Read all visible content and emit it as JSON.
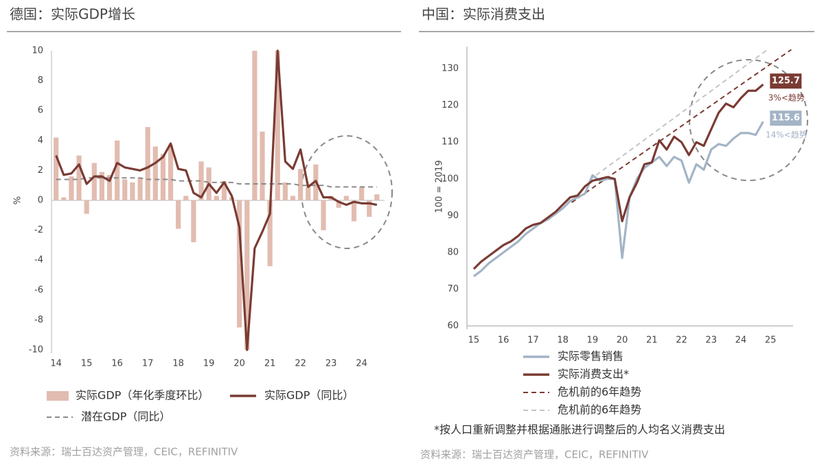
{
  "chart_data": [
    {
      "type": "bar",
      "title": "德国：实际GDP增长",
      "y_label": "%",
      "source": "资料来源：瑞士百达资产管理，CEIC，REFINITIV",
      "x": [
        14,
        14.25,
        14.5,
        14.75,
        15,
        15.25,
        15.5,
        15.75,
        16,
        16.25,
        16.5,
        16.75,
        17,
        17.25,
        17.5,
        17.75,
        18,
        18.25,
        18.5,
        18.75,
        19,
        19.25,
        19.5,
        19.75,
        20,
        20.25,
        20.5,
        20.75,
        21,
        21.25,
        21.5,
        21.75,
        22,
        22.25,
        22.5,
        22.75,
        23,
        23.25,
        23.5,
        23.75,
        24,
        24.25,
        24.5
      ],
      "xlim": [
        13.85,
        24.75
      ],
      "xticks": [
        14,
        15,
        16,
        17,
        18,
        19,
        20,
        21,
        22,
        23,
        24
      ],
      "ylim": [
        -10,
        10
      ],
      "yticks": [
        -10,
        -8,
        -6,
        -4,
        -2,
        0,
        2,
        4,
        6,
        8,
        10
      ],
      "grid": false,
      "series": [
        {
          "name": "实际GDP（年化季度环比）",
          "type": "bar",
          "color": "#e2bcb0",
          "values": [
            4.2,
            0.2,
            1.6,
            3.0,
            -0.9,
            2.5,
            1.9,
            1.7,
            4.0,
            1.4,
            1.2,
            1.5,
            4.9,
            3.6,
            3.1,
            3.7,
            -1.9,
            0.3,
            -2.8,
            2.6,
            2.2,
            0.3,
            1.3,
            0.2,
            -8.5,
            -10,
            10,
            4.6,
            -4.4,
            10,
            1.2,
            0.3,
            2.1,
            0.9,
            2.4,
            -2.0,
            0.3,
            -0.5,
            0.3,
            -1.4,
            0.9,
            -1.1,
            0.4
          ]
        },
        {
          "name": "实际GDP（同比）",
          "type": "line",
          "color": "#7a3b33",
          "style": "solid",
          "values": [
            3.0,
            1.7,
            1.8,
            2.4,
            1.1,
            1.6,
            1.6,
            1.3,
            2.5,
            2.2,
            2.1,
            2.0,
            2.2,
            2.5,
            2.9,
            3.8,
            2.1,
            2.0,
            0.5,
            0.2,
            1.1,
            0.5,
            1.2,
            0.3,
            -1.8,
            -10,
            -3.2,
            -2.1,
            -0.9,
            10,
            2.6,
            2.1,
            3.4,
            0.9,
            1.3,
            0.2,
            0.2,
            -0.1,
            -0.3,
            -0.1,
            -0.2,
            -0.2,
            -0.3
          ]
        },
        {
          "name": "潜在GDP（同比）",
          "type": "line",
          "color": "#8a8a8a",
          "style": "dashed",
          "values": [
            1.4,
            1.4,
            1.4,
            1.4,
            1.5,
            1.5,
            1.5,
            1.5,
            1.5,
            1.5,
            1.5,
            1.5,
            1.4,
            1.4,
            1.4,
            1.4,
            1.3,
            1.3,
            1.3,
            1.3,
            1.2,
            1.2,
            1.2,
            1.2,
            1.1,
            1.1,
            1.1,
            1.1,
            1.1,
            1.1,
            1.1,
            1.1,
            1.0,
            1.0,
            1.0,
            1.0,
            0.9,
            0.9,
            0.9,
            0.9,
            0.9,
            0.9,
            0.9
          ]
        }
      ]
    },
    {
      "type": "line",
      "title": "中国：实际消费支出",
      "y_label": "100 = 2019",
      "note": "*按人口重新调整并根据通胀进行调整后的人均名义消费支出",
      "source": "资料来源：瑞士百达资产管理，CEIC，REFINITIV",
      "x": [
        15,
        15.25,
        15.5,
        15.75,
        16,
        16.25,
        16.5,
        16.75,
        17,
        17.25,
        17.5,
        17.75,
        18,
        18.25,
        18.5,
        18.75,
        19,
        19.25,
        19.5,
        19.75,
        20,
        20.25,
        20.5,
        20.75,
        21,
        21.25,
        21.5,
        21.75,
        22,
        22.25,
        22.5,
        22.75,
        23,
        23.25,
        23.5,
        23.75,
        24,
        24.25,
        24.5,
        24.75
      ],
      "xlim": [
        14.77,
        25.76
      ],
      "xticks": [
        15,
        16,
        17,
        18,
        19,
        20,
        21,
        22,
        23,
        24,
        25
      ],
      "ylim": [
        60,
        136
      ],
      "yticks": [
        60,
        70,
        80,
        90,
        100,
        110,
        120,
        130
      ],
      "grid": false,
      "series": [
        {
          "name": "实际零售销售",
          "type": "line",
          "color": "#a3b4c6",
          "style": "solid",
          "end_label": true,
          "end_note": "14%<趋势",
          "values": [
            73.5,
            75,
            77,
            78.5,
            80,
            81.5,
            83,
            85,
            86.5,
            88,
            89,
            90.5,
            92,
            94,
            95,
            96,
            101,
            99.5,
            100,
            100,
            78.5,
            95,
            100,
            103,
            104.5,
            106,
            103.5,
            106,
            105,
            99,
            104,
            102.5,
            108,
            109.5,
            109,
            111,
            112.5,
            112.5,
            112,
            115.6
          ]
        },
        {
          "name": "实际消费支出*",
          "type": "line",
          "color": "#7a3b33",
          "style": "solid",
          "end_label": true,
          "end_note": "3%<趋势",
          "values": [
            75.5,
            77.5,
            79,
            80.5,
            82,
            83,
            84.5,
            86.5,
            87.5,
            88,
            89.5,
            91,
            93,
            95,
            95.5,
            98,
            99.5,
            100,
            100.5,
            100,
            88.5,
            95,
            99,
            104,
            104.5,
            110.5,
            108,
            111.5,
            110,
            106.5,
            110,
            109,
            113.5,
            118,
            120.5,
            119.5,
            122,
            124,
            124,
            125.7
          ]
        },
        {
          "name": "危机前的6年趋势",
          "type": "line",
          "color": "#7a3b33",
          "style": "dashed",
          "x": [
            18.3,
            25.7
          ],
          "values": [
            93.6,
            135.2
          ]
        },
        {
          "name": "危机前的6年趋势",
          "type": "line",
          "color": "#c4c4c4",
          "style": "dashed",
          "x": [
            18.9,
            24.9
          ],
          "values": [
            99.7,
            135.2
          ]
        }
      ]
    }
  ]
}
